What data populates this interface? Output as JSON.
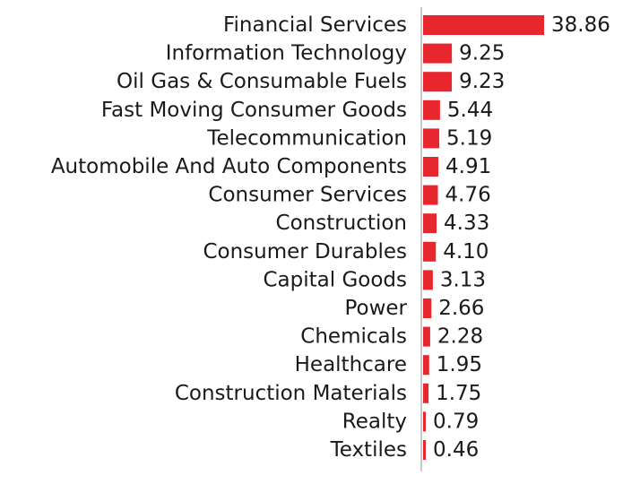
{
  "chart_data": {
    "type": "bar",
    "orientation": "horizontal",
    "title": "",
    "xlabel": "",
    "ylabel": "",
    "categories": [
      "Financial Services",
      "Information Technology",
      "Oil Gas & Consumable Fuels",
      "Fast Moving Consumer Goods",
      "Telecommunication",
      "Automobile And Auto Components",
      "Consumer Services",
      "Construction",
      "Consumer Durables",
      "Capital Goods",
      "Power",
      "Chemicals",
      "Healthcare",
      "Construction Materials",
      "Realty",
      "Textiles"
    ],
    "values": [
      38.86,
      9.25,
      9.23,
      5.44,
      5.19,
      4.91,
      4.76,
      4.33,
      4.1,
      3.13,
      2.66,
      2.28,
      1.95,
      1.75,
      0.79,
      0.46
    ],
    "value_labels": [
      "38.86",
      "9.25",
      "9.23",
      "5.44",
      "5.19",
      "4.91",
      "4.76",
      "4.33",
      "4.10",
      "3.13",
      "2.66",
      "2.28",
      "1.95",
      "1.75",
      "0.79",
      "0.46"
    ],
    "xlim": [
      0,
      38.86
    ],
    "grid": false,
    "colors": {
      "bar": "#e8262e",
      "axis": "#c8c8c8",
      "text": "#1a1a1a"
    }
  }
}
